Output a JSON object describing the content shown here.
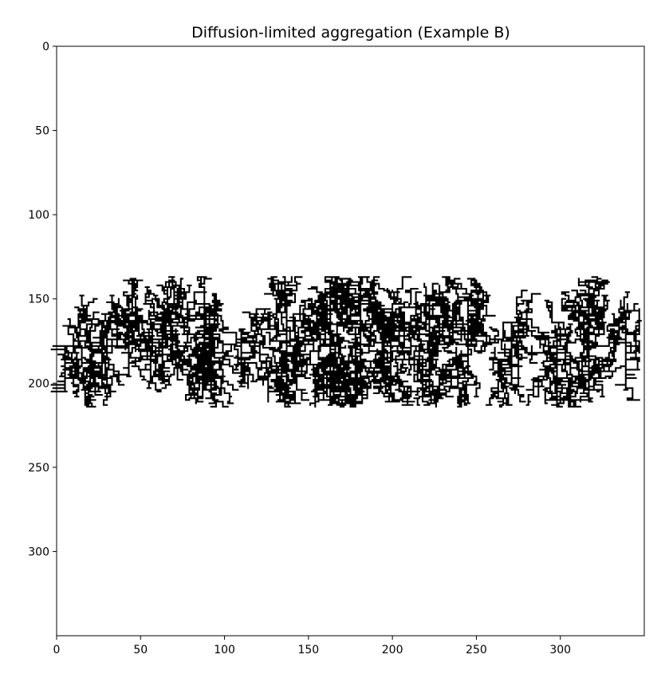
{
  "chart_data": {
    "type": "heatmap",
    "title": "Diffusion-limited aggregation (Example B)",
    "xlabel": "",
    "ylabel": "",
    "xlim": [
      0,
      350
    ],
    "ylim": [
      350,
      0
    ],
    "x_ticks": [
      0,
      50,
      100,
      150,
      200,
      250,
      300
    ],
    "y_ticks": [
      0,
      50,
      100,
      150,
      200,
      250,
      300
    ],
    "grid": false,
    "legend": "none",
    "colors": {
      "cluster": "#000000",
      "background": "#ffffff"
    },
    "cluster": {
      "description_seed": 7,
      "baseline_y": 178,
      "x_range": [
        3,
        347
      ],
      "y_range": [
        137,
        214
      ],
      "trunks": [
        {
          "x": 5,
          "top": 178,
          "bottom": 205
        },
        {
          "x": 27,
          "top": 163,
          "bottom": 203
        },
        {
          "x": 43,
          "top": 160,
          "bottom": 196
        },
        {
          "x": 63,
          "top": 158,
          "bottom": 200
        },
        {
          "x": 88,
          "top": 153,
          "bottom": 203
        },
        {
          "x": 110,
          "top": 168,
          "bottom": 196
        },
        {
          "x": 137,
          "top": 148,
          "bottom": 201
        },
        {
          "x": 163,
          "top": 139,
          "bottom": 213
        },
        {
          "x": 181,
          "top": 137,
          "bottom": 206
        },
        {
          "x": 199,
          "top": 158,
          "bottom": 200
        },
        {
          "x": 222,
          "top": 150,
          "bottom": 208
        },
        {
          "x": 245,
          "top": 151,
          "bottom": 190
        },
        {
          "x": 271,
          "top": 164,
          "bottom": 201
        },
        {
          "x": 298,
          "top": 168,
          "bottom": 213
        },
        {
          "x": 317,
          "top": 140,
          "bottom": 210
        },
        {
          "x": 339,
          "top": 162,
          "bottom": 204
        }
      ]
    }
  }
}
